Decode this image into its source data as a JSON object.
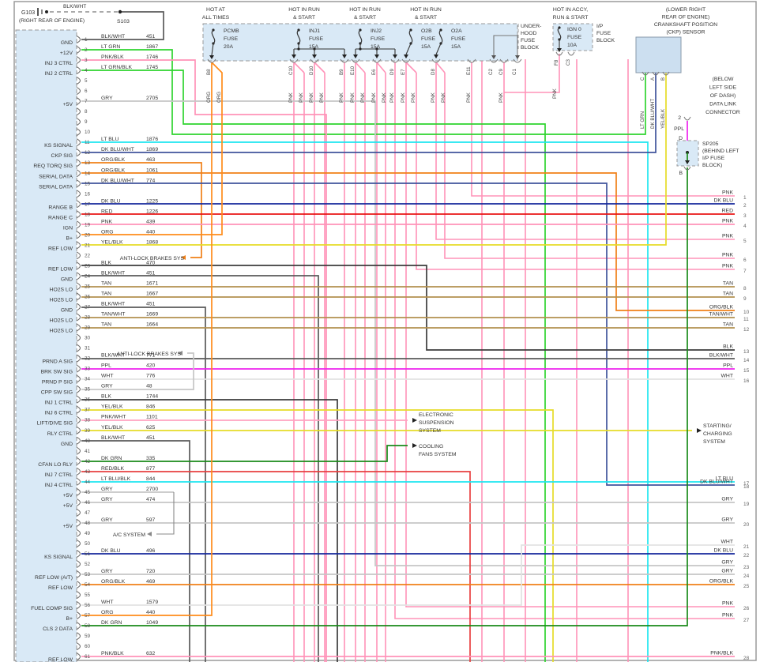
{
  "colors": {
    "BLK/WHT": "#5a5a5a",
    "BLK": "#3c3c3c",
    "LT GRN": "#2fd42f",
    "LT GRN/BLK": "#2fd42f",
    "PNK": "#ff93b8",
    "PNK/BLK": "#ff93b8",
    "PNK/WHT": "#ffa3c0",
    "GRY": "#c6c6c6",
    "LT BLU": "#1ee6f0",
    "LT BLU/BLK": "#1ee6f0",
    "DK BLU": "#14279b",
    "DK BLU/WHT": "#40549c",
    "ORG": "#ff8c1a",
    "ORG/BLK": "#f08018",
    "RED": "#e81414",
    "RED/BLK": "#e84040",
    "YEL/BLK": "#e6dc28",
    "TAN": "#b3914f",
    "TAN/WHT": "#b3914f",
    "PPL": "#ee22ee",
    "WHT": "#e2e2e2",
    "DK GRN": "#1a8a1a",
    "structure": "#888888",
    "text": "#333333",
    "box_fill": "#d9e9f6",
    "ckp_fill": "#ccdff0"
  },
  "ground": {
    "id": "G103",
    "location": "(RIGHT REAR OF ENGINE)",
    "wire": "BLK/WHT",
    "splice": "S103"
  },
  "fuse_strip": {
    "underhood_label": [
      "UNDER-",
      "HOOD",
      "FUSE",
      "BLOCK"
    ],
    "fuses": [
      {
        "name": "PCMB",
        "fuse_word": "FUSE",
        "amps": "20A",
        "hot": [
          "HOT AT",
          "ALL TIMES"
        ]
      },
      {
        "name": "INJ1",
        "fuse_word": "FUSE",
        "amps": "15A",
        "hot": [
          "HOT IN RUN",
          "& START"
        ]
      },
      {
        "name": "INJ2",
        "fuse_word": "FUSE",
        "amps": "15A",
        "hot": [
          "HOT IN RUN",
          "& START"
        ]
      },
      {
        "name": "O2B",
        "fuse_word": "FUSE",
        "amps": "15A",
        "hot": [
          "HOT IN RUN",
          "& START"
        ]
      },
      {
        "name": "O2A",
        "fuse_word": "FUSE",
        "amps": "15A",
        "hot": null
      }
    ]
  },
  "ign0": {
    "name": "IGN 0",
    "fuse_word": "FUSE",
    "amps": "10A",
    "hot": [
      "HOT IN ACCY,",
      "RUN & START"
    ],
    "block_label": [
      "I/P",
      "FUSE",
      "BLOCK"
    ],
    "terminals": [
      "F8",
      "C3"
    ],
    "wire": "PNK"
  },
  "drops": [
    {
      "term": "B8",
      "wires": [
        "ORG",
        "ORG"
      ]
    },
    {
      "term": "C10",
      "wires": [
        "PNK",
        "PNK"
      ]
    },
    {
      "term": "D10",
      "wires": [
        "PNK",
        "PNK"
      ]
    },
    {
      "term": "B9",
      "wires": [
        "PNK"
      ]
    },
    {
      "term": "E10",
      "wires": [
        "PNK",
        "PNK"
      ]
    },
    {
      "term": "E6",
      "wires": [
        "PNK",
        "PNK"
      ]
    },
    {
      "term": "D9",
      "wires": [
        "PNK"
      ]
    },
    {
      "term": "E7",
      "wires": [
        "PNK",
        "PNK"
      ]
    },
    {
      "term": "D8",
      "wires": [
        "PNK",
        "PNK"
      ]
    },
    {
      "term": "E11",
      "wires": [
        "PNK"
      ]
    },
    {
      "term": "C2",
      "wires": []
    },
    {
      "term": "C9",
      "wires": [
        "PNK"
      ]
    },
    {
      "term": "C1",
      "wires": []
    }
  ],
  "ckp": {
    "title": [
      "(LOWER RIGHT",
      "REAR OF ENGINE)",
      "CRANKSHAFT POSITION",
      "(CKP) SENSOR"
    ],
    "wires": [
      {
        "color": "LT GRN",
        "pin": "C"
      },
      {
        "color": "DK BLU/WHT",
        "pin": "A"
      },
      {
        "color": "YEL/BLK",
        "pin": "B"
      }
    ]
  },
  "dlc": {
    "label": [
      "(BELOW",
      "LEFT SIDE",
      "OF DASH)",
      "DATA LINK",
      "CONNECTOR"
    ],
    "pin": "2",
    "wire": "PPL",
    "in_term": "D",
    "out_term": "B"
  },
  "sp205": {
    "name": "SP205",
    "location": [
      "(BEHIND LEFT",
      "I/P FUSE",
      "BLOCK)"
    ]
  },
  "systems": {
    "abs": "ANTI-LOCK BRAKES SYS",
    "ac": "A/C SYSTEM",
    "ess": [
      "ELECTRONIC",
      "SUSPENSION",
      "SYSTEM"
    ],
    "cooling": [
      "COOLING",
      "FANS SYSTEM"
    ],
    "starting": [
      "STARTING/",
      "CHARGING",
      "SYSTEM"
    ]
  },
  "left_connector": {
    "pins": [
      {
        "n": 1,
        "signal": "GND",
        "color": "BLK/WHT",
        "circuit": "451"
      },
      {
        "n": 2,
        "signal": "+12V",
        "color": "LT GRN",
        "circuit": "1867"
      },
      {
        "n": 3,
        "signal": "INJ 3 CTRL",
        "color": "PNK/BLK",
        "circuit": "1746"
      },
      {
        "n": 4,
        "signal": "INJ 2 CTRL",
        "color": "LT GRN/BLK",
        "circuit": "1745"
      },
      {
        "n": 5
      },
      {
        "n": 6
      },
      {
        "n": 7,
        "signal": "+5V",
        "color": "GRY",
        "circuit": "2705"
      },
      {
        "n": 8
      },
      {
        "n": 9
      },
      {
        "n": 10
      },
      {
        "n": 11,
        "signal": "KS SIGNAL",
        "color": "LT BLU",
        "circuit": "1876"
      },
      {
        "n": 12,
        "signal": "CKP SIG",
        "color": "DK BLU/WHT",
        "circuit": "1869"
      },
      {
        "n": 13,
        "signal": "REQ TORQ SIG",
        "color": "ORG/BLK",
        "circuit": "463"
      },
      {
        "n": 14,
        "signal": "SERIAL DATA",
        "color": "ORG/BLK",
        "circuit": "1061"
      },
      {
        "n": 15,
        "signal": "SERIAL DATA",
        "color": "DK BLU/WHT",
        "circuit": "774"
      },
      {
        "n": 16
      },
      {
        "n": 17,
        "signal": "RANGE B",
        "color": "DK BLU",
        "circuit": "1225"
      },
      {
        "n": 18,
        "signal": "RANGE C",
        "color": "RED",
        "circuit": "1226"
      },
      {
        "n": 19,
        "signal": "IGN",
        "color": "PNK",
        "circuit": "439"
      },
      {
        "n": 20,
        "signal": "B+",
        "color": "ORG",
        "circuit": "440"
      },
      {
        "n": 21,
        "signal": "REF LOW",
        "color": "YEL/BLK",
        "circuit": "1868"
      },
      {
        "n": 22
      },
      {
        "n": 23,
        "signal": "REF LOW",
        "color": "BLK",
        "circuit": "470"
      },
      {
        "n": 24,
        "signal": "GND",
        "color": "BLK/WHT",
        "circuit": "451"
      },
      {
        "n": 25,
        "signal": "HO2S LO",
        "color": "TAN",
        "circuit": "1671"
      },
      {
        "n": 26,
        "signal": "HO2S LO",
        "color": "TAN",
        "circuit": "1667"
      },
      {
        "n": 27,
        "signal": "GND",
        "color": "BLK/WHT",
        "circuit": "451"
      },
      {
        "n": 28,
        "signal": "HO2S LO",
        "color": "TAN/WHT",
        "circuit": "1669"
      },
      {
        "n": 29,
        "signal": "HO2S LO",
        "color": "TAN",
        "circuit": "1664"
      },
      {
        "n": 30
      },
      {
        "n": 31
      },
      {
        "n": 32,
        "signal": "PRND A SIG",
        "color": "BLK/WHT",
        "circuit": "771"
      },
      {
        "n": 33,
        "signal": "BRK SW SIG",
        "color": "PPL",
        "circuit": "420"
      },
      {
        "n": 34,
        "signal": "PRND P SIG",
        "color": "WHT",
        "circuit": "776"
      },
      {
        "n": 35,
        "signal": "CPP SW SIG",
        "color": "GRY",
        "circuit": "48"
      },
      {
        "n": 36,
        "signal": "INJ 1 CTRL",
        "color": "BLK",
        "circuit": "1744"
      },
      {
        "n": 37,
        "signal": "INJ 6 CTRL",
        "color": "YEL/BLK",
        "circuit": "846"
      },
      {
        "n": 38,
        "signal": "LIFT/DIVE SIG",
        "color": "PNK/WHT",
        "circuit": "1101"
      },
      {
        "n": 39,
        "signal": "RLY CTRL",
        "color": "YEL/BLK",
        "circuit": "625"
      },
      {
        "n": 40,
        "signal": "GND",
        "color": "BLK/WHT",
        "circuit": "451"
      },
      {
        "n": 41
      },
      {
        "n": 42,
        "signal": "CFAN LO RLY",
        "color": "DK GRN",
        "circuit": "335"
      },
      {
        "n": 43,
        "signal": "INJ 7 CTRL",
        "color": "RED/BLK",
        "circuit": "877"
      },
      {
        "n": 44,
        "signal": "INJ 4 CTRL",
        "color": "LT BLU/BLK",
        "circuit": "844"
      },
      {
        "n": 45,
        "signal": "+5V",
        "color": "GRY",
        "circuit": "2700"
      },
      {
        "n": 46,
        "signal": "+5V",
        "color": "GRY",
        "circuit": "474"
      },
      {
        "n": 47
      },
      {
        "n": 48,
        "signal": "+5V",
        "color": "GRY",
        "circuit": "597"
      },
      {
        "n": 49
      },
      {
        "n": 50
      },
      {
        "n": 51,
        "signal": "KS SIGNAL",
        "color": "DK BLU",
        "circuit": "496"
      },
      {
        "n": 52
      },
      {
        "n": 53,
        "signal": "REF LOW (A/T)",
        "color": "GRY",
        "circuit": "720"
      },
      {
        "n": 54,
        "signal": "REF LOW",
        "color": "ORG/BLK",
        "circuit": "469"
      },
      {
        "n": 55
      },
      {
        "n": 56,
        "signal": "FUEL COMP SIG",
        "color": "WHT",
        "circuit": "1579"
      },
      {
        "n": 57,
        "signal": "B+",
        "color": "ORG",
        "circuit": "440"
      },
      {
        "n": 58,
        "signal": "CLS 2 DATA",
        "color": "DK GRN",
        "circuit": "1049"
      },
      {
        "n": 59
      },
      {
        "n": 60
      },
      {
        "n": 61,
        "signal": "REF LOW",
        "color": "PNK/BLK",
        "circuit": "632"
      }
    ]
  },
  "right_pins": [
    {
      "n": 1,
      "color": "PNK"
    },
    {
      "n": 2,
      "color": "DK BLU"
    },
    {
      "n": 3,
      "color": "RED"
    },
    {
      "n": 4,
      "color": "PNK"
    },
    {
      "n": 5,
      "color": "PNK"
    },
    {
      "n": 6,
      "color": "PNK"
    },
    {
      "n": 7,
      "color": "PNK"
    },
    {
      "n": 8,
      "color": "TAN"
    },
    {
      "n": 9,
      "color": "TAN"
    },
    {
      "n": 10,
      "color": "ORG/BLK"
    },
    {
      "n": 11,
      "color": "TAN/WHT"
    },
    {
      "n": 12,
      "color": "TAN"
    },
    {
      "n": 13,
      "color": "BLK"
    },
    {
      "n": 14,
      "color": "BLK/WHT"
    },
    {
      "n": 15,
      "color": "PPL"
    },
    {
      "n": 16,
      "color": "WHT"
    },
    {
      "n": 17,
      "color": "LT BLU"
    },
    {
      "n": 18,
      "color": "DK BLU/WHT"
    },
    {
      "n": 19,
      "color": "GRY"
    },
    {
      "n": 20,
      "color": "GRY"
    },
    {
      "n": 21,
      "color": "WHT"
    },
    {
      "n": 22,
      "color": "DK BLU"
    },
    {
      "n": 23,
      "color": "GRY"
    },
    {
      "n": 24,
      "color": "GRY"
    },
    {
      "n": 25,
      "color": "ORG/BLK"
    },
    {
      "n": 26,
      "color": "PNK"
    },
    {
      "n": 27,
      "color": "PNK"
    },
    {
      "n": 28,
      "color": "PNK/BLK"
    }
  ]
}
